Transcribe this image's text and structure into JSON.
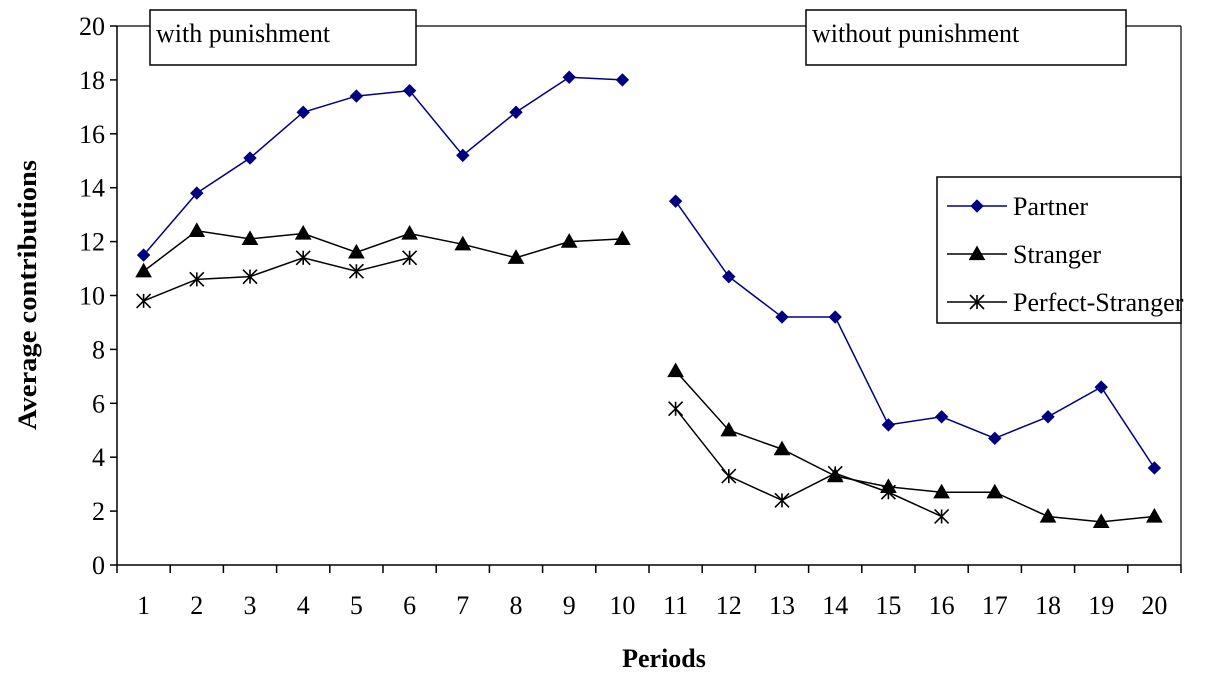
{
  "chart_data": {
    "type": "line",
    "title": "",
    "xlabel": "Periods",
    "ylabel": "Average contributions",
    "ylim": [
      0,
      20
    ],
    "yticks": [
      0,
      2,
      4,
      6,
      8,
      10,
      12,
      14,
      16,
      18,
      20
    ],
    "categories": [
      "1",
      "2",
      "3",
      "4",
      "5",
      "6",
      "7",
      "8",
      "9",
      "10",
      "11",
      "12",
      "13",
      "14",
      "15",
      "16",
      "17",
      "18",
      "19",
      "20"
    ],
    "grid": false,
    "legend_position": "right",
    "annotations": [
      "with punishment",
      "without punishment"
    ],
    "series": [
      {
        "name": "Partner",
        "color": "#000080",
        "marker": "diamond",
        "values": [
          11.5,
          13.8,
          15.1,
          16.8,
          17.4,
          17.6,
          15.2,
          16.8,
          18.1,
          18.0,
          13.5,
          10.7,
          9.2,
          9.2,
          5.2,
          5.5,
          4.7,
          5.5,
          6.6,
          3.6
        ]
      },
      {
        "name": "Stranger",
        "color": "#000000",
        "marker": "triangle",
        "values": [
          10.9,
          12.4,
          12.1,
          12.3,
          11.6,
          12.3,
          11.9,
          11.4,
          12.0,
          12.1,
          7.2,
          5.0,
          4.3,
          3.3,
          2.9,
          2.7,
          2.7,
          1.8,
          1.6,
          1.8
        ]
      },
      {
        "name": "Perfect-Stranger",
        "color": "#000000",
        "marker": "star",
        "values": [
          9.8,
          10.6,
          10.7,
          11.4,
          10.9,
          11.4,
          null,
          null,
          null,
          null,
          5.8,
          3.3,
          2.4,
          3.4,
          2.7,
          1.8,
          null,
          null,
          null,
          null
        ]
      }
    ]
  }
}
